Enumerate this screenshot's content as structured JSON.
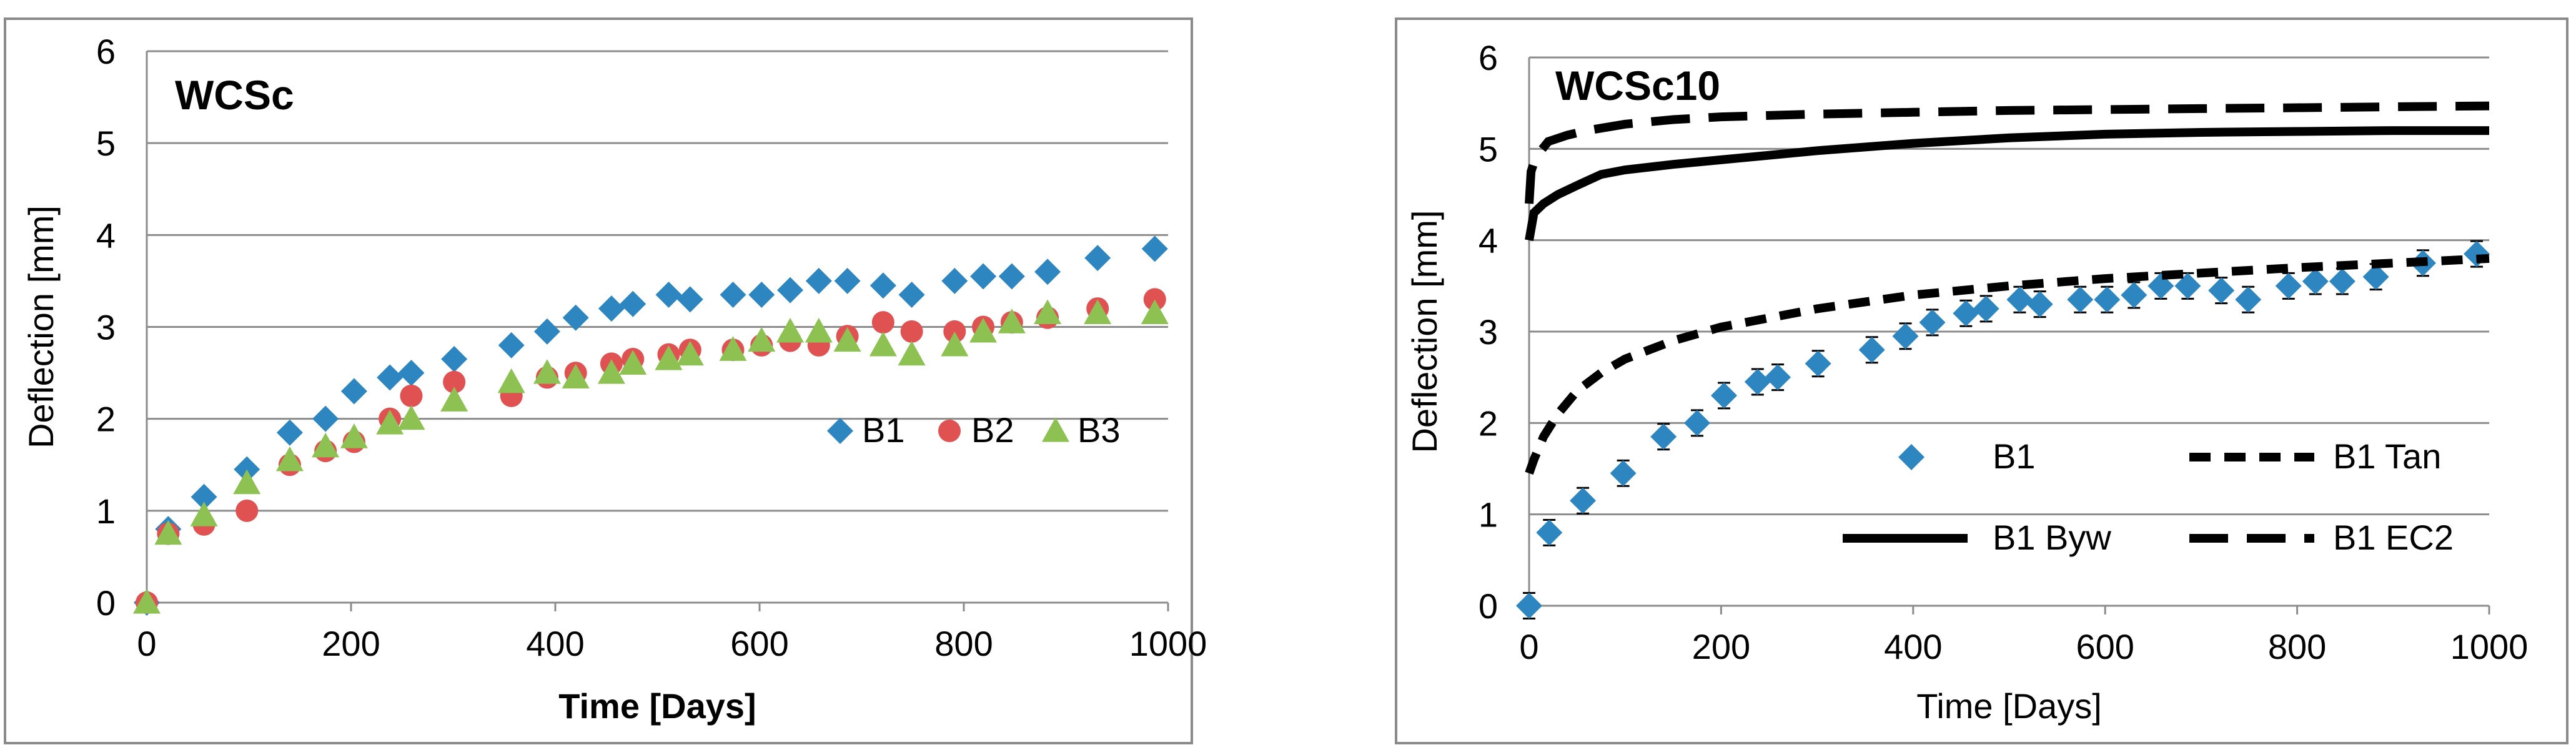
{
  "chart_data": [
    {
      "type": "scatter",
      "title": "WCSc",
      "xlabel": "Time [Days]",
      "ylabel": "Deflection [mm]",
      "xlim": [
        0,
        1000
      ],
      "ylim": [
        0,
        6
      ],
      "xticks": [
        0,
        200,
        400,
        600,
        800,
        1000
      ],
      "yticks": [
        0,
        1,
        2,
        3,
        4,
        5,
        6
      ],
      "grid": "horizontal",
      "legend": "bottom-right",
      "series": [
        {
          "name": "B1",
          "marker": "diamond",
          "color": "#2E86C1",
          "x": [
            0,
            21,
            56,
            98,
            140,
            175,
            203,
            238,
            259,
            301,
            357,
            392,
            420,
            455,
            476,
            511,
            532,
            574,
            602,
            630,
            658,
            686,
            721,
            749,
            791,
            819,
            847,
            882,
            931,
            987
          ],
          "y": [
            0,
            0.8,
            1.15,
            1.45,
            1.85,
            2.0,
            2.3,
            2.45,
            2.5,
            2.65,
            2.8,
            2.95,
            3.1,
            3.2,
            3.25,
            3.35,
            3.3,
            3.35,
            3.35,
            3.4,
            3.5,
            3.5,
            3.45,
            3.35,
            3.5,
            3.55,
            3.55,
            3.6,
            3.75,
            3.85
          ]
        },
        {
          "name": "B2",
          "marker": "circle",
          "color": "#E05252",
          "x": [
            0,
            21,
            56,
            98,
            140,
            175,
            203,
            238,
            259,
            301,
            357,
            392,
            420,
            455,
            476,
            511,
            532,
            574,
            602,
            630,
            658,
            686,
            721,
            749,
            791,
            819,
            847,
            882,
            931,
            987
          ],
          "y": [
            0,
            0.75,
            0.85,
            1.0,
            1.5,
            1.65,
            1.75,
            2.0,
            2.25,
            2.4,
            2.25,
            2.45,
            2.5,
            2.6,
            2.65,
            2.7,
            2.75,
            2.75,
            2.8,
            2.85,
            2.8,
            2.9,
            3.05,
            2.95,
            2.95,
            3.0,
            3.05,
            3.1,
            3.2,
            3.3
          ]
        },
        {
          "name": "B3",
          "marker": "triangle",
          "color": "#8DC152",
          "x": [
            0,
            21,
            56,
            98,
            140,
            175,
            203,
            238,
            259,
            301,
            357,
            392,
            420,
            455,
            476,
            511,
            532,
            574,
            602,
            630,
            658,
            686,
            721,
            749,
            791,
            819,
            847,
            882,
            931,
            987
          ],
          "y": [
            0,
            0.75,
            0.95,
            1.3,
            1.55,
            1.7,
            1.8,
            1.95,
            2.0,
            2.2,
            2.4,
            2.5,
            2.45,
            2.5,
            2.6,
            2.65,
            2.7,
            2.75,
            2.85,
            2.95,
            2.95,
            2.85,
            2.8,
            2.7,
            2.8,
            2.95,
            3.05,
            3.15,
            3.15,
            3.15
          ]
        }
      ]
    },
    {
      "type": "scatter+line",
      "title": "WCSc10",
      "xlabel": "Time [Days]",
      "ylabel": "Deflection [mm]",
      "xlim": [
        0,
        1000
      ],
      "ylim": [
        0,
        6
      ],
      "xticks": [
        0,
        200,
        400,
        600,
        800,
        1000
      ],
      "yticks": [
        0,
        1,
        2,
        3,
        4,
        5,
        6
      ],
      "grid": "horizontal",
      "legend": "bottom",
      "series": [
        {
          "name": "B1",
          "kind": "points",
          "marker": "diamond",
          "color": "#2E86C1",
          "error": 0.14,
          "x": [
            0,
            21,
            56,
            98,
            140,
            175,
            203,
            238,
            259,
            301,
            357,
            392,
            420,
            455,
            476,
            511,
            532,
            574,
            602,
            630,
            658,
            686,
            721,
            749,
            791,
            819,
            847,
            882,
            931,
            987
          ],
          "y": [
            0,
            0.8,
            1.15,
            1.45,
            1.85,
            2.0,
            2.3,
            2.45,
            2.5,
            2.65,
            2.8,
            2.95,
            3.1,
            3.2,
            3.25,
            3.35,
            3.3,
            3.35,
            3.35,
            3.4,
            3.5,
            3.5,
            3.45,
            3.35,
            3.5,
            3.55,
            3.55,
            3.6,
            3.75,
            3.85
          ]
        },
        {
          "name": "B1 Tan",
          "kind": "line",
          "dash": "dashed",
          "color": "#000000",
          "x": [
            0,
            5,
            15,
            30,
            50,
            75,
            100,
            150,
            200,
            300,
            400,
            500,
            600,
            700,
            800,
            900,
            1000
          ],
          "y": [
            1.45,
            1.6,
            1.85,
            2.1,
            2.35,
            2.55,
            2.7,
            2.9,
            3.05,
            3.25,
            3.4,
            3.5,
            3.58,
            3.64,
            3.7,
            3.75,
            3.8
          ]
        },
        {
          "name": "B1 Byw",
          "kind": "line",
          "dash": "solid",
          "color": "#000000",
          "x": [
            0,
            5,
            15,
            30,
            50,
            75,
            100,
            150,
            200,
            300,
            400,
            500,
            600,
            700,
            800,
            900,
            1000
          ],
          "y": [
            4.0,
            4.3,
            4.4,
            4.5,
            4.6,
            4.72,
            4.77,
            4.83,
            4.88,
            4.98,
            5.06,
            5.12,
            5.16,
            5.18,
            5.19,
            5.2,
            5.2
          ]
        },
        {
          "name": "B1 EC2",
          "kind": "line",
          "dash": "long-dash",
          "color": "#000000",
          "x": [
            0,
            2,
            5,
            10,
            20,
            40,
            60,
            100,
            150,
            200,
            300,
            400,
            500,
            600,
            700,
            800,
            900,
            1000
          ],
          "y": [
            4.4,
            4.75,
            4.85,
            4.95,
            5.08,
            5.15,
            5.2,
            5.27,
            5.32,
            5.35,
            5.38,
            5.4,
            5.42,
            5.43,
            5.44,
            5.45,
            5.46,
            5.47
          ]
        }
      ]
    }
  ]
}
